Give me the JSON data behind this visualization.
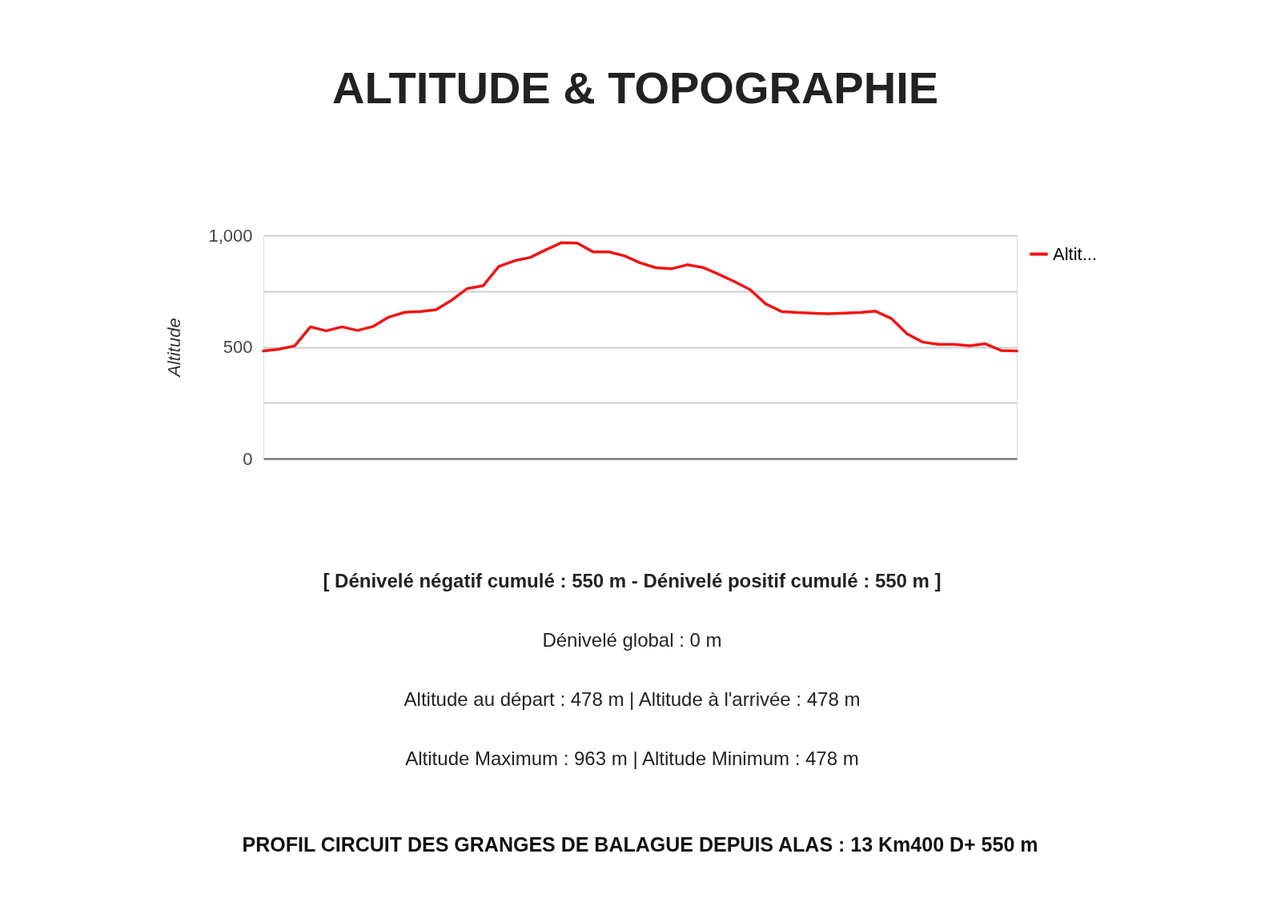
{
  "chart_data": {
    "type": "line",
    "title": "ALTITUDE & TOPOGRAPHIE",
    "ylabel": "Altitude",
    "categories": [
      null,
      null,
      null,
      null,
      null,
      null,
      null,
      null,
      null,
      null,
      null,
      null,
      null,
      null,
      null,
      null,
      null,
      null,
      null,
      null,
      null,
      null,
      null,
      null,
      null,
      null,
      null,
      null,
      null,
      null,
      null,
      null,
      null,
      null,
      null,
      null,
      null,
      null,
      null,
      null,
      null,
      null,
      null,
      null,
      null,
      null,
      null,
      null,
      null
    ],
    "series": [
      {
        "name": "Altit...",
        "color": "#f01414",
        "values": [
          482,
          490,
          505,
          590,
          572,
          590,
          574,
          592,
          634,
          655,
          659,
          667,
          710,
          762,
          774,
          861,
          886,
          901,
          935,
          967,
          965,
          926,
          926,
          908,
          877,
          855,
          850,
          868,
          856,
          826,
          793,
          757,
          693,
          659,
          654,
          651,
          649,
          651,
          654,
          660,
          628,
          559,
          522,
          512,
          512,
          505,
          514,
          484,
          482
        ]
      }
    ],
    "ylim": [
      0,
      1000
    ],
    "yticks": [
      0,
      {
        "value": 250,
        "label": null
      },
      500,
      {
        "value": 750,
        "label": null
      },
      {
        "value": 1000,
        "label": "1,000"
      }
    ],
    "grid": "y",
    "legend": "top right",
    "tick_labels": "y",
    "line_style": "solid",
    "marker": "none",
    "annotations": [
      "[ Dénivelé négatif cumulé : 550 m - Dénivelé positif cumulé : 550  m ]",
      "Dénivelé global : 0  m",
      "Altitude au départ : 478  m | Altitude à l'arrivée : 478  m",
      "Altitude Maximum : 963  m | Altitude Minimum : 478  m",
      "PROFIL CIRCUIT DES GRANGES DE BALAGUE DEPUIS ALAS : 13 Km400 D+ 550 m"
    ]
  }
}
